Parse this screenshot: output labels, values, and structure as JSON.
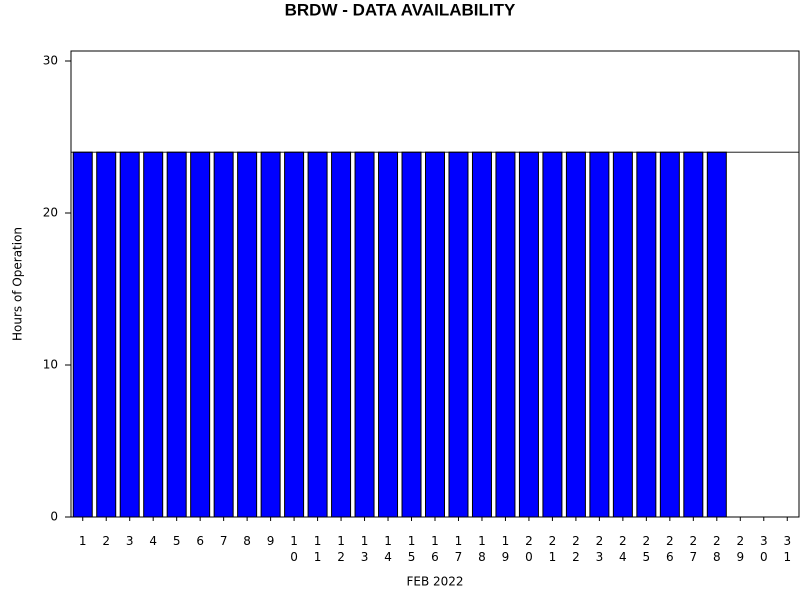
{
  "chart_data": {
    "type": "bar",
    "title": "BRDW - DATA AVAILABILITY",
    "x_label": "FEB 2022",
    "y_label": "Hours of Operation",
    "categories": [
      "1",
      "2",
      "3",
      "4",
      "5",
      "6",
      "7",
      "8",
      "9",
      "10",
      "11",
      "12",
      "13",
      "14",
      "15",
      "16",
      "17",
      "18",
      "19",
      "20",
      "21",
      "22",
      "23",
      "24",
      "25",
      "26",
      "27",
      "28",
      "29",
      "30",
      "31"
    ],
    "values": [
      24,
      24,
      24,
      24,
      24,
      24,
      24,
      24,
      24,
      24,
      24,
      24,
      24,
      24,
      24,
      24,
      24,
      24,
      24,
      24,
      24,
      24,
      24,
      24,
      24,
      24,
      24,
      24,
      null,
      null,
      null
    ],
    "color": "#0000ff",
    "reference_line": 24,
    "ylim": [
      0,
      30
    ],
    "yticks": [
      0,
      10,
      20,
      30
    ]
  }
}
